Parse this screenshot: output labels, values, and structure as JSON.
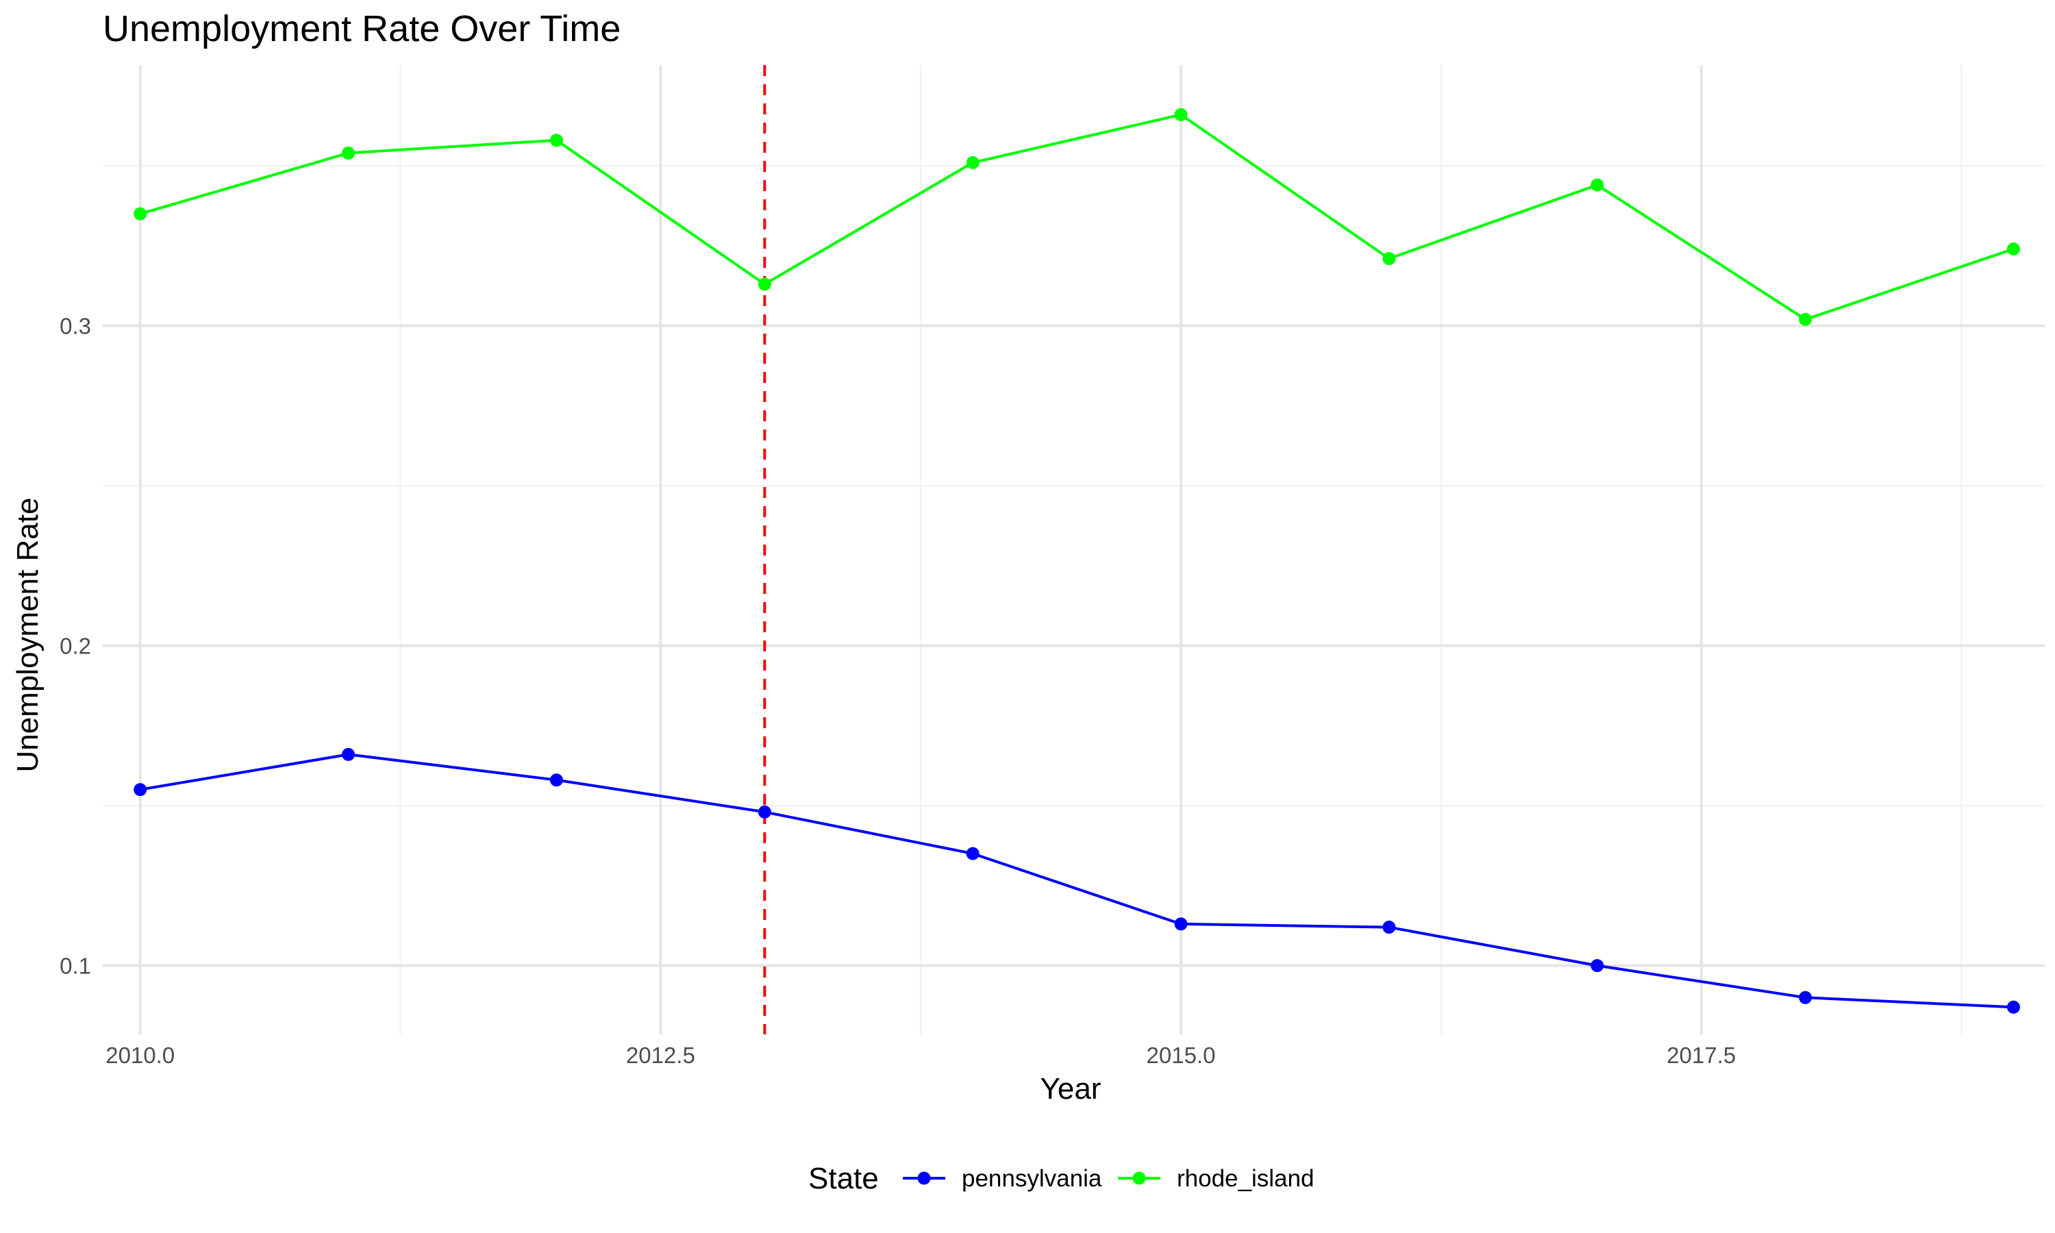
{
  "chart_data": {
    "type": "line",
    "title": "Unemployment Rate Over Time",
    "xlabel": "Year",
    "ylabel": "Unemployment Rate",
    "xlim": [
      2009.82,
      2019.15
    ],
    "ylim": [
      0.0785,
      0.3815
    ],
    "x_ticks": [
      2010.0,
      2012.5,
      2015.0,
      2017.5
    ],
    "x_tick_labels": [
      "2010.0",
      "2012.5",
      "2015.0",
      "2017.5"
    ],
    "y_ticks": [
      0.1,
      0.2,
      0.3
    ],
    "y_tick_labels": [
      "0.1",
      "0.2",
      "0.3"
    ],
    "grid": true,
    "vline": {
      "x": 2013,
      "color": "#ff0000",
      "style": "dashed"
    },
    "legend": {
      "title": "State",
      "position": "bottom"
    },
    "series": [
      {
        "name": "pennsylvania",
        "color": "#0000ff",
        "x": [
          2010,
          2011,
          2012,
          2013,
          2014,
          2015,
          2016,
          2017,
          2018,
          2019
        ],
        "values": [
          0.155,
          0.166,
          0.158,
          0.148,
          0.135,
          0.113,
          0.112,
          0.1,
          0.09,
          0.087
        ]
      },
      {
        "name": "rhode_island",
        "color": "#00ff00",
        "x": [
          2010,
          2011,
          2012,
          2013,
          2014,
          2015,
          2016,
          2017,
          2018,
          2019
        ],
        "values": [
          0.335,
          0.354,
          0.358,
          0.313,
          0.351,
          0.366,
          0.321,
          0.344,
          0.302,
          0.324
        ]
      }
    ]
  }
}
